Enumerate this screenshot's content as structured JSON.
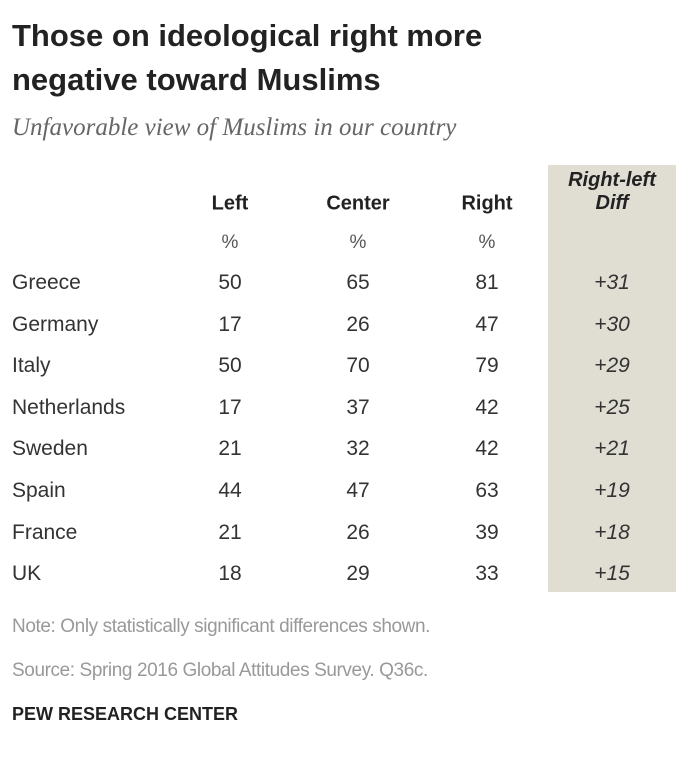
{
  "header": {
    "title": "Those on ideological right more negative toward Muslims",
    "subtitle": "Unfavorable view of Muslims in our country"
  },
  "table": {
    "columns": [
      "Left",
      "Center",
      "Right",
      "Right-left Diff"
    ],
    "units": [
      "%",
      "%",
      "%"
    ],
    "rows": [
      [
        "Greece",
        50,
        65,
        81,
        "+31"
      ],
      [
        "Germany",
        17,
        26,
        47,
        "+30"
      ],
      [
        "Italy",
        50,
        70,
        79,
        "+29"
      ],
      [
        "Netherlands",
        17,
        37,
        42,
        "+25"
      ],
      [
        "Sweden",
        21,
        32,
        42,
        "+21"
      ],
      [
        "Spain",
        44,
        47,
        63,
        "+19"
      ],
      [
        "France",
        21,
        26,
        39,
        "+18"
      ],
      [
        "UK",
        18,
        29,
        33,
        "+15"
      ]
    ]
  },
  "footer": {
    "note": "Note: Only statistically significant differences shown.",
    "source": "Source: Spring 2016 Global Attitudes Survey. Q36c.",
    "credit": "PEW RESEARCH CENTER"
  }
}
